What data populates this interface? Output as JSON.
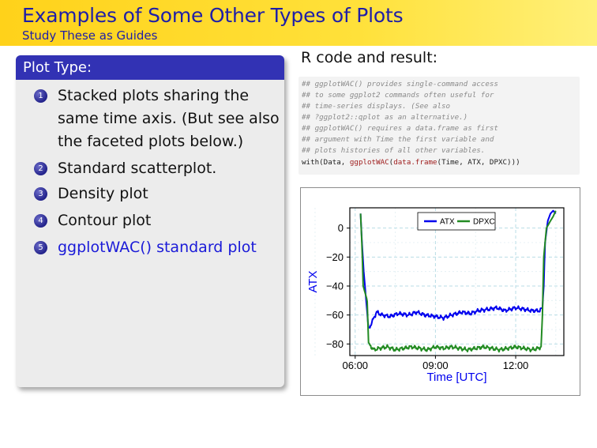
{
  "header": {
    "title": "Examples of Some Other Types of Plots",
    "subtitle": "Study These as Guides"
  },
  "block": {
    "title": "Plot Type:",
    "items": [
      {
        "num": "1",
        "lines": [
          "Stacked plots sharing the",
          "same time axis. (But see also",
          "the faceted plots below.)"
        ]
      },
      {
        "num": "2",
        "lines": [
          "Standard scatterplot."
        ]
      },
      {
        "num": "3",
        "lines": [
          "Density plot"
        ]
      },
      {
        "num": "4",
        "lines": [
          "Contour plot"
        ]
      },
      {
        "num": "5",
        "lines": [
          "ggplotWAC() standard plot"
        ],
        "highlighted": true
      }
    ]
  },
  "right_title": "R code and result:",
  "code": {
    "comments": [
      "## ggplotWAC() provides single-command access",
      "## to some ggplot2 commands often useful for",
      "## time-series displays. (See also",
      "## ?ggplot2::qplot as an alternative.)",
      "## ggplotWAC() requires a data.frame as first",
      "## argument with Time the first variable and",
      "## plots histories of all other variables."
    ],
    "cmd_fn1": "with",
    "cmd_part1": "(Data, ",
    "cmd_fn2": "ggplotWAC",
    "cmd_part2": "(",
    "cmd_fn3": "data.frame",
    "cmd_part3": "(Time, ATX, DPXC)))"
  },
  "colors": {
    "header_text": "#1e1ea8",
    "block_head": "#3232b4",
    "highlight_text": "#1a1ad8",
    "series_atx": "#0000ee",
    "series_dpxc": "#228b22"
  },
  "chart_data": {
    "type": "line",
    "xlabel": "Time [UTC]",
    "ylabel": "ATX",
    "x_ticks": [
      "06:00",
      "09:00",
      "12:00"
    ],
    "y_ticks": [
      0,
      -20,
      -40,
      -60,
      -80
    ],
    "xlim_hours": [
      5.8,
      13.8
    ],
    "ylim": [
      -88,
      14
    ],
    "grid": true,
    "legend_position": "top-center",
    "series": [
      {
        "name": "ATX",
        "x_hours": [
          6.2,
          6.25,
          6.32,
          6.5,
          6.8,
          7.0,
          7.3,
          7.6,
          8.0,
          8.3,
          8.6,
          9.0,
          9.3,
          9.6,
          10.0,
          10.3,
          10.6,
          11.0,
          11.3,
          11.6,
          12.0,
          12.3,
          12.6,
          12.9,
          13.0,
          13.05,
          13.1,
          13.2,
          13.3,
          13.4,
          13.5
        ],
        "values": [
          10,
          -8,
          -30,
          -70,
          -58,
          -60,
          -61,
          -59,
          -60,
          -58,
          -60,
          -61,
          -62,
          -60,
          -58,
          -59,
          -57,
          -56,
          -55,
          -57,
          -55,
          -56,
          -57,
          -57,
          -55,
          -40,
          -10,
          5,
          10,
          12,
          10
        ]
      },
      {
        "name": "DPXC",
        "x_hours": [
          6.2,
          6.25,
          6.3,
          6.45,
          6.5,
          6.7,
          6.9,
          7.2,
          7.5,
          7.8,
          8.1,
          8.4,
          8.7,
          9.0,
          9.3,
          9.6,
          9.9,
          10.2,
          10.5,
          10.8,
          11.1,
          11.4,
          11.7,
          12.0,
          12.3,
          12.6,
          12.85,
          12.95,
          13.0,
          13.05,
          13.15,
          13.3,
          13.4,
          13.5
        ],
        "values": [
          10,
          -10,
          -40,
          -50,
          -80,
          -84,
          -83,
          -82,
          -84,
          -83,
          -82,
          -83,
          -84,
          -82,
          -83,
          -82,
          -83,
          -84,
          -83,
          -82,
          -83,
          -84,
          -83,
          -82,
          -83,
          -84,
          -83,
          -82,
          -60,
          -20,
          0,
          5,
          8,
          12
        ]
      }
    ]
  }
}
